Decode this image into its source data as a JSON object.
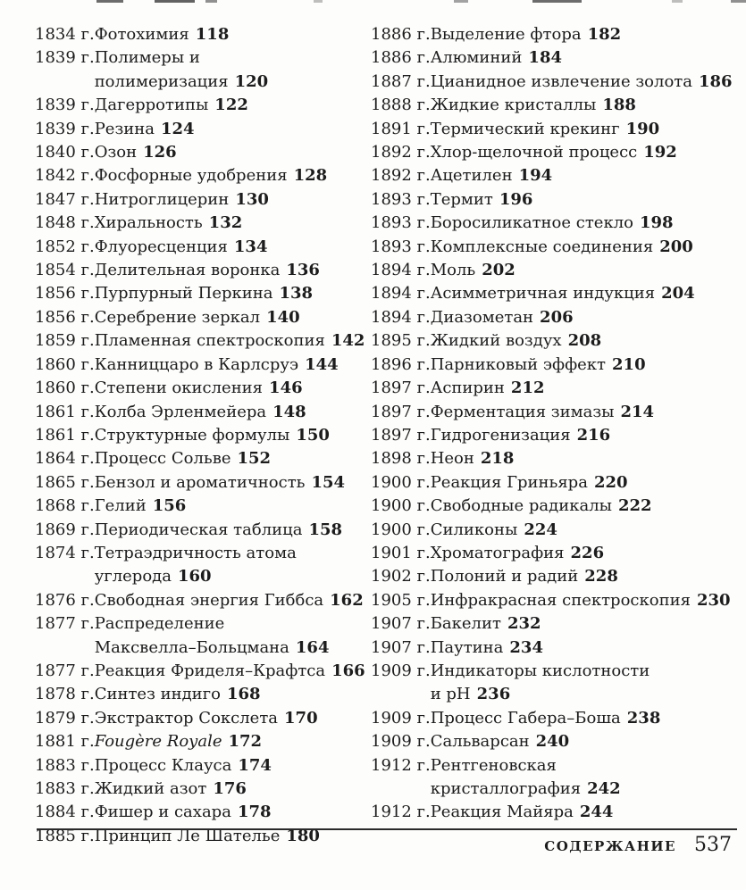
{
  "colors": {
    "ink": "#1c1c1c",
    "paper": "#fdfdfc"
  },
  "footer": {
    "section_label": "СОДЕРЖАНИЕ",
    "page_number": "537"
  },
  "toc": {
    "left_column": [
      {
        "year": "1834 г.",
        "title": "Фотохимия",
        "page": "118"
      },
      {
        "year": "1839 г.",
        "title": "Полимеры и полимеризация",
        "page": "120"
      },
      {
        "year": "1839 г.",
        "title": "Дагерротипы",
        "page": "122"
      },
      {
        "year": "1839 г.",
        "title": "Резина",
        "page": "124"
      },
      {
        "year": "1840 г.",
        "title": "Озон",
        "page": "126"
      },
      {
        "year": "1842 г.",
        "title": "Фосфорные удобрения",
        "page": "128"
      },
      {
        "year": "1847 г.",
        "title": "Нитроглицерин",
        "page": "130"
      },
      {
        "year": "1848 г.",
        "title": "Хиральность",
        "page": "132"
      },
      {
        "year": "1852 г.",
        "title": "Флуоресценция",
        "page": "134"
      },
      {
        "year": "1854 г.",
        "title": "Делительная воронка",
        "page": "136"
      },
      {
        "year": "1856 г.",
        "title": "Пурпурный Перкина",
        "page": "138"
      },
      {
        "year": "1856 г.",
        "title": "Серебрение зеркал",
        "page": "140"
      },
      {
        "year": "1859 г.",
        "title": "Пламенная спектроскопия",
        "page": "142"
      },
      {
        "year": "1860 г.",
        "title": "Канниццаро в Карлсруэ",
        "page": "144"
      },
      {
        "year": "1860 г.",
        "title": "Степени окисления",
        "page": "146"
      },
      {
        "year": "1861 г.",
        "title": "Колба Эрленмейера",
        "page": "148"
      },
      {
        "year": "1861 г.",
        "title": "Структурные формулы",
        "page": "150"
      },
      {
        "year": "1864 г.",
        "title": "Процесс Сольве",
        "page": "152"
      },
      {
        "year": "1865 г.",
        "title": "Бензол и ароматичность",
        "page": "154"
      },
      {
        "year": "1868 г.",
        "title": "Гелий",
        "page": "156"
      },
      {
        "year": "1869 г.",
        "title": "Периодическая таблица",
        "page": "158"
      },
      {
        "year": "1874 г.",
        "title": "Тетраэдричность атома\nуглерода",
        "page": "160"
      },
      {
        "year": "1876 г.",
        "title": "Свободная энергия Гиббса",
        "page": "162"
      },
      {
        "year": "1877 г.",
        "title": "Распределение\nМаксвелла–Больцмана",
        "page": "164"
      },
      {
        "year": "1877 г.",
        "title": "Реакция Фриделя–Крафтса",
        "page": "166"
      },
      {
        "year": "1878 г.",
        "title": "Синтез индиго",
        "page": "168"
      },
      {
        "year": "1879 г.",
        "title": "Экстрактор Сокслета",
        "page": "170"
      },
      {
        "year": "1881 г.",
        "title": "Fougère Royale",
        "page": "172",
        "italic": true
      },
      {
        "year": "1883 г.",
        "title": "Процесс Клауса",
        "page": "174"
      },
      {
        "year": "1883 г.",
        "title": "Жидкий азот",
        "page": "176"
      },
      {
        "year": "1884 г.",
        "title": "Фишер и сахара",
        "page": "178"
      },
      {
        "year": "1885 г.",
        "title": "Принцип Ле Шателье",
        "page": "180"
      }
    ],
    "right_column": [
      {
        "year": "1886 г.",
        "title": "Выделение фтора",
        "page": "182"
      },
      {
        "year": "1886 г.",
        "title": "Алюминий",
        "page": "184"
      },
      {
        "year": "1887 г.",
        "title": "Цианидное извлечение золота",
        "page": "186"
      },
      {
        "year": "1888 г.",
        "title": "Жидкие кристаллы",
        "page": "188"
      },
      {
        "year": "1891 г.",
        "title": "Термический крекинг",
        "page": "190"
      },
      {
        "year": "1892 г.",
        "title": "Хлор-щелочной процесс",
        "page": "192"
      },
      {
        "year": "1892 г.",
        "title": "Ацетилен",
        "page": "194"
      },
      {
        "year": "1893 г.",
        "title": "Термит",
        "page": "196"
      },
      {
        "year": "1893 г.",
        "title": "Боросиликатное стекло",
        "page": "198"
      },
      {
        "year": "1893 г.",
        "title": "Комплексные соединения",
        "page": "200"
      },
      {
        "year": "1894 г.",
        "title": "Моль",
        "page": "202"
      },
      {
        "year": "1894 г.",
        "title": "Асимметричная индукция",
        "page": "204"
      },
      {
        "year": "1894 г.",
        "title": "Диазометан",
        "page": "206"
      },
      {
        "year": "1895 г.",
        "title": "Жидкий воздух",
        "page": "208"
      },
      {
        "year": "1896 г.",
        "title": "Парниковый эффект",
        "page": "210"
      },
      {
        "year": "1897 г.",
        "title": "Аспирин",
        "page": "212"
      },
      {
        "year": "1897 г.",
        "title": "Ферментация зимазы",
        "page": "214"
      },
      {
        "year": "1897 г.",
        "title": "Гидрогенизация",
        "page": "216"
      },
      {
        "year": "1898 г.",
        "title": "Неон",
        "page": "218"
      },
      {
        "year": "1900 г.",
        "title": "Реакция Гриньяра",
        "page": "220"
      },
      {
        "year": "1900 г.",
        "title": "Свободные радикалы",
        "page": "222"
      },
      {
        "year": "1900 г.",
        "title": "Силиконы",
        "page": "224"
      },
      {
        "year": "1901 г.",
        "title": "Хроматография",
        "page": "226"
      },
      {
        "year": "1902 г.",
        "title": "Полоний и радий",
        "page": "228"
      },
      {
        "year": "1905 г.",
        "title": "Инфракрасная спектроскопия",
        "page": "230"
      },
      {
        "year": "1907 г.",
        "title": "Бакелит",
        "page": "232"
      },
      {
        "year": "1907 г.",
        "title": "Паутина",
        "page": "234"
      },
      {
        "year": "1909 г.",
        "title": "Индикаторы кислотности\nи pH",
        "page": "236"
      },
      {
        "year": "1909 г.",
        "title": "Процесс Габера–Боша",
        "page": "238"
      },
      {
        "year": "1909 г.",
        "title": "Сальварсан",
        "page": "240"
      },
      {
        "year": "1912 г.",
        "title": "Рентгеновская\nкристаллография",
        "page": "242"
      },
      {
        "year": "1912 г.",
        "title": "Реакция Майяра",
        "page": "244"
      }
    ]
  }
}
